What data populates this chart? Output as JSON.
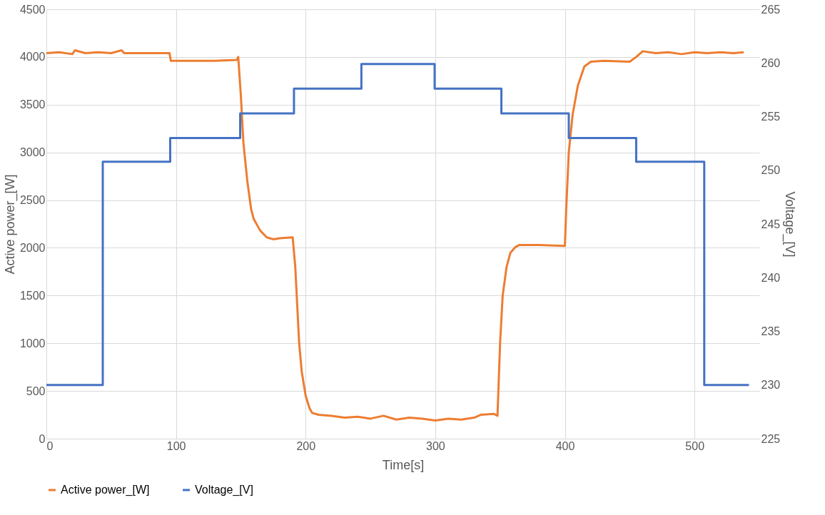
{
  "chart_data": {
    "type": "line",
    "xlabel": "Time[s]",
    "ylabel": "Active power_[W]",
    "y2label": "Voltage_[V]",
    "xlim": [
      0,
      550
    ],
    "xticks": [
      0,
      100,
      200,
      300,
      400,
      500
    ],
    "ylim": [
      0,
      4500
    ],
    "yticks": [
      0,
      500,
      1000,
      1500,
      2000,
      2500,
      3000,
      3500,
      4000,
      4500
    ],
    "y2lim": [
      225,
      265
    ],
    "y2ticks": [
      225,
      230,
      235,
      240,
      245,
      250,
      255,
      260,
      265
    ],
    "grid": true,
    "legend": "bottom",
    "line_style": "solid",
    "marker": "none",
    "series": [
      {
        "name": "Active power_[W]",
        "color": "#ed7d31",
        "x": [
          0,
          10,
          20,
          22,
          30,
          40,
          50,
          58,
          60,
          70,
          80,
          95,
          96,
          110,
          130,
          147,
          148,
          150,
          152,
          155,
          158,
          160,
          165,
          170,
          175,
          180,
          190,
          192,
          195,
          197,
          200,
          203,
          205,
          210,
          220,
          230,
          240,
          250,
          260,
          270,
          280,
          290,
          300,
          310,
          320,
          330,
          335,
          345,
          348,
          350,
          352,
          355,
          358,
          362,
          365,
          380,
          400,
          401,
          403,
          406,
          410,
          415,
          420,
          430,
          450,
          455,
          460,
          470,
          480,
          490,
          500,
          510,
          520,
          530,
          538
        ],
        "values": [
          4040,
          4050,
          4030,
          4070,
          4040,
          4050,
          4040,
          4070,
          4040,
          4040,
          4040,
          4040,
          3960,
          3960,
          3960,
          3970,
          4000,
          3600,
          3100,
          2700,
          2400,
          2300,
          2180,
          2110,
          2090,
          2100,
          2110,
          1800,
          1000,
          700,
          450,
          320,
          270,
          250,
          240,
          220,
          230,
          210,
          240,
          200,
          220,
          210,
          190,
          210,
          200,
          220,
          250,
          260,
          240,
          1000,
          1500,
          1800,
          1950,
          2010,
          2030,
          2030,
          2020,
          2400,
          3000,
          3400,
          3700,
          3900,
          3950,
          3960,
          3950,
          4000,
          4060,
          4040,
          4050,
          4030,
          4050,
          4040,
          4050,
          4040,
          4050
        ]
      },
      {
        "name": "Voltage_[V]",
        "color": "#4472c4",
        "axis": "y2",
        "x": [
          0,
          43.5,
          43.5,
          95.5,
          95.5,
          149.5,
          149.5,
          191,
          191,
          243,
          243,
          299.5,
          299.5,
          351,
          351,
          403,
          403,
          455,
          455,
          507.5,
          507.5,
          542
        ],
        "values": [
          230,
          230,
          250.8,
          250.8,
          253,
          253,
          255.3,
          255.3,
          257.6,
          257.6,
          259.9,
          259.9,
          257.6,
          257.6,
          255.3,
          255.3,
          253,
          253,
          250.8,
          250.8,
          230,
          230
        ]
      }
    ]
  }
}
